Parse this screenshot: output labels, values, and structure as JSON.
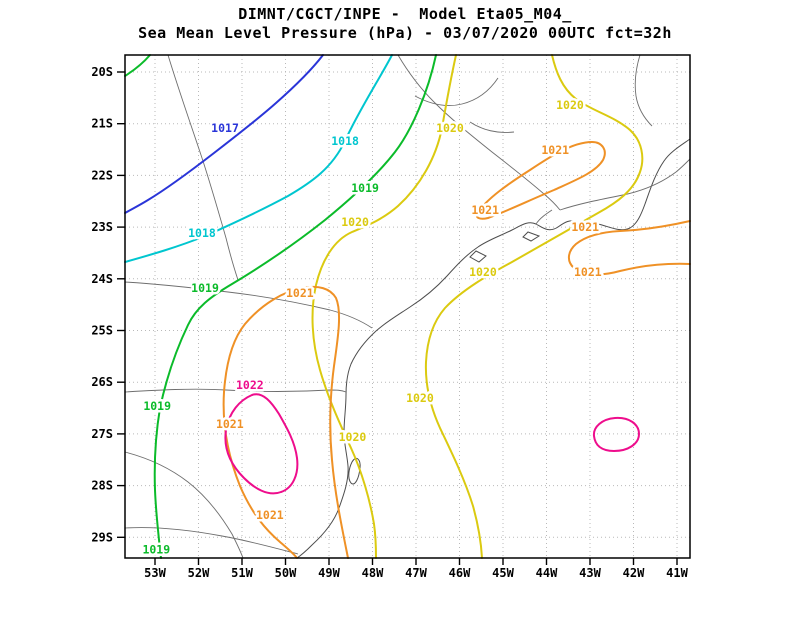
{
  "chart_data": {
    "type": "contour-map",
    "title": "DIMNT/CGCT/INPE -  Model Eta05_M04_",
    "subtitle": "Sea Mean Level Pressure (hPa) - 03/07/2020 00UTC fct=32h",
    "grid": "dotted",
    "x_axis": {
      "ticks": [
        "53W",
        "52W",
        "51W",
        "50W",
        "49W",
        "48W",
        "47W",
        "46W",
        "45W",
        "44W",
        "43W",
        "42W",
        "41W"
      ],
      "values_deg_west": [
        53,
        52,
        51,
        50,
        49,
        48,
        47,
        46,
        45,
        44,
        43,
        42,
        41
      ]
    },
    "y_axis": {
      "ticks": [
        "20S",
        "21S",
        "22S",
        "23S",
        "24S",
        "25S",
        "26S",
        "27S",
        "28S",
        "29S"
      ],
      "values_deg_south": [
        20,
        21,
        22,
        23,
        24,
        25,
        26,
        27,
        28,
        29
      ]
    },
    "contour_interval_hPa": 1,
    "levels": [
      1017,
      1018,
      1019,
      1020,
      1021,
      1022
    ],
    "level_colors": {
      "1017": "#2a35d8",
      "1018": "#00c6cf",
      "1019": "#0bbb2a",
      "1020": "#dbca10",
      "1021": "#ef9126",
      "1022": "#ee0d8c"
    },
    "labels": [
      {
        "text": "1017",
        "level": 1017,
        "lon_w": 51.39,
        "lat_s": 21.08
      },
      {
        "text": "1018",
        "level": 1018,
        "lon_w": 48.63,
        "lat_s": 21.33
      },
      {
        "text": "1018",
        "level": 1018,
        "lon_w": 51.92,
        "lat_s": 23.11
      },
      {
        "text": "1019",
        "level": 1019,
        "lon_w": 48.17,
        "lat_s": 22.24
      },
      {
        "text": "1019",
        "level": 1019,
        "lon_w": 51.85,
        "lat_s": 24.18
      },
      {
        "text": "1019",
        "level": 1019,
        "lon_w": 52.95,
        "lat_s": 26.46
      },
      {
        "text": "1019",
        "level": 1019,
        "lon_w": 52.97,
        "lat_s": 29.24
      },
      {
        "text": "1020",
        "level": 1020,
        "lon_w": 46.22,
        "lat_s": 21.08
      },
      {
        "text": "1020",
        "level": 1020,
        "lon_w": 43.46,
        "lat_s": 20.64
      },
      {
        "text": "1020",
        "level": 1020,
        "lon_w": 48.4,
        "lat_s": 22.9
      },
      {
        "text": "1020",
        "level": 1020,
        "lon_w": 45.46,
        "lat_s": 23.87
      },
      {
        "text": "1020",
        "level": 1020,
        "lon_w": 46.91,
        "lat_s": 26.31
      },
      {
        "text": "1020",
        "level": 1020,
        "lon_w": 48.46,
        "lat_s": 27.06
      },
      {
        "text": "1021",
        "level": 1021,
        "lon_w": 49.67,
        "lat_s": 24.27
      },
      {
        "text": "1021",
        "level": 1021,
        "lon_w": 51.28,
        "lat_s": 26.81
      },
      {
        "text": "1021",
        "level": 1021,
        "lon_w": 50.36,
        "lat_s": 28.57
      },
      {
        "text": "1021",
        "level": 1021,
        "lon_w": 43.8,
        "lat_s": 21.51
      },
      {
        "text": "1021",
        "level": 1021,
        "lon_w": 45.41,
        "lat_s": 22.67
      },
      {
        "text": "1021",
        "level": 1021,
        "lon_w": 43.11,
        "lat_s": 23.0
      },
      {
        "text": "1021",
        "level": 1021,
        "lon_w": 43.05,
        "lat_s": 23.87
      },
      {
        "text": "1022",
        "level": 1022,
        "lon_w": 50.82,
        "lat_s": 26.05
      }
    ]
  }
}
